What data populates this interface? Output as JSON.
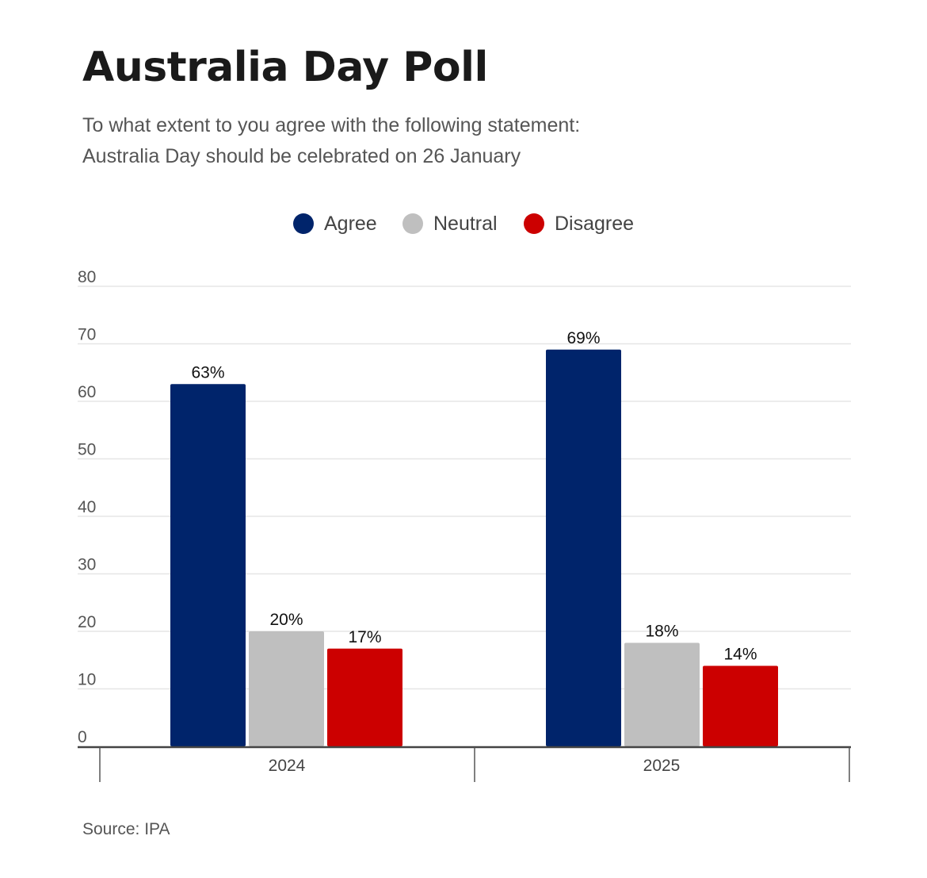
{
  "chart_data": {
    "type": "bar",
    "title": "Australia Day Poll",
    "subtitle": [
      "To what extent to you agree with the following statement:",
      "Australia Day should be celebrated on 26 January"
    ],
    "categories": [
      "2024",
      "2025"
    ],
    "series": [
      {
        "name": "Agree",
        "color": "#00246b",
        "values": [
          63,
          69
        ],
        "labels": [
          "63%",
          "69%"
        ]
      },
      {
        "name": "Neutral",
        "color": "#bfbfbf",
        "values": [
          20,
          18
        ],
        "labels": [
          "20%",
          "18%"
        ]
      },
      {
        "name": "Disagree",
        "color": "#cc0000",
        "values": [
          17,
          14
        ],
        "labels": [
          "17%",
          "14%"
        ]
      }
    ],
    "yticks": [
      "0",
      "10",
      "20",
      "30",
      "40",
      "50",
      "60",
      "70",
      "80"
    ],
    "ylim": [
      0,
      80
    ],
    "xlabel": "",
    "ylabel": "",
    "legend_position": "top-center",
    "grid": true,
    "source": "Source: IPA"
  }
}
